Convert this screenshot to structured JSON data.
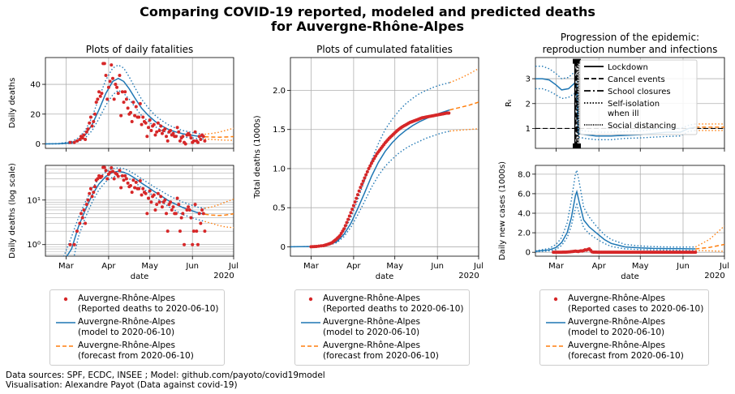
{
  "suptitle": {
    "line1": "Comparing COVID-19 reported, modeled and predicted deaths",
    "line2": "for Auvergne-Rhône-Alpes"
  },
  "colors": {
    "reported": "#d62728",
    "model": "#1f77b4",
    "forecast": "#ff7f0e",
    "grid": "#b0b0b0"
  },
  "sources": {
    "line1": "Data sources: SPF, ECDC, INSEE ; Model: github.com/payoto/covid19model",
    "line2": "Visualisation: Alexandre Payot (Data against covid-19)"
  },
  "legends": {
    "deaths": [
      {
        "kind": "points",
        "text1": "Auvergne-Rhône-Alpes",
        "text2": "(Reported deaths to  2020-06-10)"
      },
      {
        "kind": "solid",
        "text1": "Auvergne-Rhône-Alpes",
        "text2": "(model to  2020-06-10)"
      },
      {
        "kind": "dashed",
        "text1": "Auvergne-Rhône-Alpes",
        "text2": "(forecast from  2020-06-10)"
      }
    ],
    "cases": [
      {
        "kind": "points",
        "text1": "Auvergne-Rhône-Alpes",
        "text2": "(Reported cases to  2020-06-10)"
      },
      {
        "kind": "solid",
        "text1": "Auvergne-Rhône-Alpes",
        "text2": "(model to  2020-06-10)"
      },
      {
        "kind": "dashed",
        "text1": "Auvergne-Rhône-Alpes",
        "text2": "(forecast from  2020-06-10)"
      }
    ]
  },
  "chart_data": [
    {
      "id": "daily",
      "type": "scatter",
      "title": "Plots of daily fatalities",
      "ylabel": "Daily deaths",
      "xlabel": "",
      "xlim": [
        "2020-02-15",
        "2020-07-01"
      ],
      "ylim": [
        -3,
        58
      ],
      "yticks": [
        0,
        20,
        40
      ],
      "xticks": [
        "Mar",
        "Apr",
        "May",
        "Jun",
        "Jul"
      ],
      "grid": true,
      "forecast_start": "2020-06-10",
      "reported_x": [
        "03-04",
        "03-07",
        "03-09",
        "03-11",
        "03-12",
        "03-13",
        "03-14",
        "03-15",
        "03-16",
        "03-17",
        "03-18",
        "03-19",
        "03-20",
        "03-21",
        "03-22",
        "03-23",
        "03-24",
        "03-25",
        "03-26",
        "03-27",
        "03-28",
        "03-29",
        "03-30",
        "03-31",
        "04-01",
        "04-02",
        "04-03",
        "04-04",
        "04-05",
        "04-06",
        "04-07",
        "04-08",
        "04-09",
        "04-10",
        "04-11",
        "04-12",
        "04-13",
        "04-14",
        "04-15",
        "04-16",
        "04-17",
        "04-18",
        "04-19",
        "04-20",
        "04-21",
        "04-22",
        "04-23",
        "04-24",
        "04-25",
        "04-26",
        "04-27",
        "04-28",
        "04-29",
        "04-30",
        "05-01",
        "05-02",
        "05-03",
        "05-04",
        "05-05",
        "05-06",
        "05-07",
        "05-08",
        "05-09",
        "05-10",
        "05-11",
        "05-12",
        "05-13",
        "05-14",
        "05-15",
        "05-16",
        "05-17",
        "05-18",
        "05-19",
        "05-20",
        "05-21",
        "05-22",
        "05-23",
        "05-24",
        "05-25",
        "05-26",
        "05-27",
        "05-28",
        "05-29",
        "05-30",
        "05-31",
        "06-01",
        "06-02",
        "06-03",
        "06-04",
        "06-05",
        "06-06",
        "06-07",
        "06-08",
        "06-09",
        "06-10"
      ],
      "reported_y": [
        1,
        1,
        2,
        3,
        5,
        4,
        6,
        3,
        8,
        10,
        14,
        18,
        12,
        15,
        20,
        28,
        30,
        35,
        32,
        34,
        54,
        54,
        46,
        30,
        38,
        42,
        53,
        44,
        30,
        40,
        38,
        34,
        46,
        19,
        35,
        28,
        35,
        30,
        24,
        20,
        21,
        15,
        28,
        19,
        25,
        18,
        18,
        27,
        13,
        18,
        15,
        14,
        5,
        11,
        16,
        9,
        12,
        13,
        6,
        8,
        14,
        9,
        12,
        7,
        9,
        10,
        5,
        2,
        8,
        9,
        6,
        7,
        5,
        5,
        11,
        8,
        2,
        4,
        5,
        1,
        0,
        6,
        7,
        6,
        4,
        1,
        2,
        8,
        2,
        1,
        5,
        3,
        6,
        5,
        2
      ],
      "model": {
        "x": [
          "02-15",
          "02-25",
          "03-05",
          "03-10",
          "03-15",
          "03-20",
          "03-25",
          "03-30",
          "04-04",
          "04-08",
          "04-12",
          "04-16",
          "04-20",
          "04-25",
          "04-30",
          "05-05",
          "05-10",
          "05-15",
          "05-20",
          "05-25",
          "05-30",
          "06-04",
          "06-10"
        ],
        "y": [
          0,
          0.1,
          0.8,
          2.5,
          6,
          13,
          23,
          34,
          42,
          44,
          42,
          37,
          31,
          24,
          19,
          15,
          12,
          9.5,
          8,
          6.8,
          6,
          5.3,
          4.8
        ],
        "lo": [
          0,
          0,
          0.3,
          1.5,
          4,
          9,
          17,
          26,
          33,
          36,
          34,
          30,
          25,
          19,
          15,
          11.5,
          9,
          7,
          5.7,
          4.7,
          4.2,
          3.7,
          3.3
        ],
        "hi": [
          0,
          0.3,
          1.5,
          4,
          9,
          18,
          31,
          43,
          51,
          53,
          51,
          45,
          38,
          30,
          24,
          19,
          15.5,
          12.5,
          10.5,
          9,
          8,
          7,
          6.5
        ]
      },
      "forecast": {
        "x": [
          "06-10",
          "06-15",
          "06-20",
          "06-25",
          "07-01"
        ],
        "y": [
          4.8,
          4.6,
          4.5,
          4.6,
          4.9
        ],
        "lo": [
          3.3,
          3,
          2.7,
          2.5,
          2.4
        ],
        "hi": [
          6.5,
          7,
          7.8,
          9,
          10.5
        ]
      }
    },
    {
      "id": "daily-log",
      "type": "scatter",
      "title": "",
      "ylabel": "Daily deaths (log scale)",
      "xlabel": "date",
      "yscale": "log",
      "xlim": [
        "2020-02-15",
        "2020-07-01"
      ],
      "ylim": [
        0.55,
        60
      ],
      "yticks": [
        1,
        10
      ],
      "ytick_labels": [
        "10⁰",
        "10¹"
      ],
      "xticks": [
        "Mar",
        "Apr",
        "May",
        "Jun",
        "Jul"
      ],
      "xtick_extra": "2020",
      "grid": true
    },
    {
      "id": "cumulative",
      "type": "line",
      "title": "Plots of cumulated fatalities",
      "ylabel": "Total deaths (1000s)",
      "xlabel": "date",
      "xlim": [
        "2020-02-15",
        "2020-07-01"
      ],
      "ylim": [
        -0.12,
        2.42
      ],
      "yticks": [
        0,
        0.5,
        1.0,
        1.5,
        2.0
      ],
      "ytick_labels": [
        "0",
        "0.5",
        "1.0",
        "1.5",
        "2.0"
      ],
      "xticks": [
        "Mar",
        "Apr",
        "May",
        "Jun",
        "Jul"
      ],
      "xtick_extra": "2020",
      "grid": true,
      "model": {
        "x": [
          "02-15",
          "03-01",
          "03-08",
          "03-15",
          "03-20",
          "03-25",
          "03-30",
          "04-04",
          "04-09",
          "04-14",
          "04-19",
          "04-24",
          "04-29",
          "05-04",
          "05-09",
          "05-14",
          "05-19",
          "05-24",
          "05-29",
          "06-03",
          "06-10"
        ],
        "y": [
          0,
          0.003,
          0.01,
          0.03,
          0.07,
          0.16,
          0.3,
          0.49,
          0.69,
          0.9,
          1.08,
          1.22,
          1.33,
          1.42,
          1.49,
          1.55,
          1.6,
          1.64,
          1.68,
          1.71,
          1.75
        ],
        "lo": [
          0,
          0.002,
          0.008,
          0.025,
          0.055,
          0.13,
          0.25,
          0.41,
          0.58,
          0.76,
          0.91,
          1.03,
          1.12,
          1.2,
          1.26,
          1.31,
          1.35,
          1.39,
          1.42,
          1.45,
          1.48
        ],
        "hi": [
          0,
          0.004,
          0.015,
          0.04,
          0.09,
          0.2,
          0.37,
          0.6,
          0.85,
          1.1,
          1.32,
          1.5,
          1.63,
          1.74,
          1.83,
          1.9,
          1.96,
          2.0,
          2.04,
          2.07,
          2.1
        ]
      },
      "forecast": {
        "x": [
          "06-10",
          "06-17",
          "06-24",
          "07-01"
        ],
        "y": [
          1.75,
          1.78,
          1.81,
          1.85
        ],
        "lo": [
          1.48,
          1.49,
          1.5,
          1.51
        ],
        "hi": [
          2.1,
          2.15,
          2.21,
          2.28
        ]
      },
      "reported": {
        "x": [
          "03-01",
          "03-05",
          "03-10",
          "03-13",
          "03-16",
          "03-19",
          "03-22",
          "03-25",
          "03-28",
          "03-31",
          "04-03",
          "04-06",
          "04-09",
          "04-12",
          "04-15",
          "04-18",
          "04-21",
          "04-24",
          "04-27",
          "04-30",
          "05-03",
          "05-06",
          "05-09",
          "05-12",
          "05-15",
          "05-18",
          "05-21",
          "05-24",
          "05-27",
          "05-30",
          "06-02",
          "06-05",
          "06-08",
          "06-10"
        ],
        "y": [
          0.001,
          0.005,
          0.015,
          0.03,
          0.05,
          0.09,
          0.14,
          0.23,
          0.35,
          0.48,
          0.62,
          0.76,
          0.88,
          1.0,
          1.1,
          1.19,
          1.26,
          1.33,
          1.39,
          1.44,
          1.49,
          1.53,
          1.56,
          1.59,
          1.61,
          1.63,
          1.65,
          1.66,
          1.67,
          1.68,
          1.69,
          1.7,
          1.71,
          1.71
        ]
      }
    },
    {
      "id": "rt",
      "type": "line",
      "title": "Progression of the epidemic:",
      "title2": "reproduction number and infections",
      "ylabel": "Rₜ",
      "xlabel": "",
      "xlim": [
        "2020-02-15",
        "2020-07-01"
      ],
      "ylim": [
        0.2,
        3.85
      ],
      "yticks": [
        1,
        2,
        3
      ],
      "xticks": [
        "Mar",
        "Apr",
        "May",
        "Jun",
        "Jul"
      ],
      "grid": true,
      "interventions_date": "2020-03-16",
      "interventions": [
        {
          "label": "Lockdown",
          "style": "solid"
        },
        {
          "label": "Cancel events",
          "style": "dashed"
        },
        {
          "label": "School closures",
          "style": "dashdot"
        },
        {
          "label": "Self-isolation\nwhen ill",
          "style": "dotted"
        },
        {
          "label": "Social distancing",
          "style": "densely-dotted"
        }
      ],
      "model": {
        "x": [
          "02-15",
          "02-20",
          "02-25",
          "03-01",
          "03-05",
          "03-10",
          "03-14",
          "03-16",
          "03-17",
          "03-22",
          "03-30",
          "04-10",
          "04-20",
          "05-01",
          "05-10",
          "05-20",
          "05-30",
          "06-05",
          "06-10"
        ],
        "y": [
          3.0,
          3.0,
          2.95,
          2.75,
          2.55,
          2.6,
          2.8,
          2.7,
          0.8,
          0.75,
          0.7,
          0.7,
          0.72,
          0.75,
          0.8,
          0.85,
          0.85,
          1.0,
          1.05
        ],
        "lo": [
          2.6,
          2.6,
          2.5,
          2.35,
          2.2,
          2.25,
          2.4,
          2.3,
          0.65,
          0.6,
          0.55,
          0.55,
          0.6,
          0.62,
          0.65,
          0.68,
          0.7,
          0.88,
          0.92
        ],
        "hi": [
          3.5,
          3.5,
          3.4,
          3.2,
          3.0,
          3.05,
          3.25,
          3.2,
          0.95,
          0.9,
          0.85,
          0.85,
          0.87,
          0.9,
          0.96,
          1.0,
          1.0,
          1.13,
          1.18
        ]
      },
      "forecast": {
        "x": [
          "06-10",
          "07-01"
        ],
        "y": [
          1.05,
          1.05
        ],
        "lo": [
          0.92,
          0.92
        ],
        "hi": [
          1.18,
          1.18
        ]
      },
      "reference_line": 1
    },
    {
      "id": "cases",
      "type": "line",
      "title": "",
      "ylabel": "Daily new cases (1000s)",
      "xlabel": "date",
      "xlim": [
        "2020-02-15",
        "2020-07-01"
      ],
      "ylim": [
        -0.4,
        8.9
      ],
      "yticks": [
        0,
        2.0,
        4.0,
        6.0,
        8.0
      ],
      "ytick_labels": [
        "0",
        "2.0",
        "4.0",
        "6.0",
        "8.0"
      ],
      "xticks": [
        "Mar",
        "Apr",
        "May",
        "Jun",
        "Jul"
      ],
      "xtick_extra": "2020",
      "grid": true,
      "model": {
        "x": [
          "02-15",
          "02-25",
          "03-01",
          "03-05",
          "03-09",
          "03-12",
          "03-15",
          "03-16",
          "03-18",
          "03-21",
          "03-25",
          "03-30",
          "04-05",
          "04-10",
          "04-20",
          "05-01",
          "05-10",
          "05-20",
          "05-30",
          "06-10"
        ],
        "y": [
          0.1,
          0.25,
          0.5,
          1.0,
          2.0,
          3.5,
          5.8,
          6.2,
          5.0,
          3.3,
          2.6,
          2.0,
          1.3,
          0.9,
          0.55,
          0.45,
          0.4,
          0.38,
          0.36,
          0.35
        ],
        "lo": [
          0.05,
          0.15,
          0.3,
          0.7,
          1.5,
          2.7,
          4.5,
          4.9,
          3.8,
          2.5,
          1.9,
          1.4,
          0.9,
          0.6,
          0.35,
          0.28,
          0.25,
          0.22,
          0.2,
          0.18
        ],
        "hi": [
          0.15,
          0.4,
          0.8,
          1.5,
          3.0,
          5.3,
          8.0,
          8.4,
          7.0,
          4.6,
          3.6,
          2.7,
          1.8,
          1.3,
          0.8,
          0.65,
          0.58,
          0.55,
          0.53,
          0.55
        ]
      },
      "forecast": {
        "x": [
          "06-10",
          "06-20",
          "07-01"
        ],
        "y": [
          0.35,
          0.5,
          0.8
        ],
        "lo": [
          0.18,
          0.15,
          0.1
        ],
        "hi": [
          0.55,
          1.3,
          2.7
        ]
      },
      "reported": {
        "x_start": "02-28",
        "x_end": "06-10",
        "y": [
          0,
          0,
          0,
          0,
          0,
          0,
          0,
          0.01,
          0.01,
          0.02,
          0.03,
          0.04,
          0.05,
          0.07,
          0.08,
          0.1,
          0.12,
          0.1,
          0.08,
          0.12,
          0.15,
          0.13,
          0.18,
          0.25,
          0.22,
          0.3,
          0.35,
          0.2,
          0.05,
          0.02,
          0.01,
          0.01,
          0,
          0,
          0,
          0,
          0,
          0,
          0,
          0,
          0,
          0,
          0,
          0,
          0,
          0,
          0,
          0,
          0,
          0,
          0,
          0,
          0,
          0,
          0,
          0,
          0,
          0,
          0,
          0,
          0,
          0,
          0,
          0,
          0,
          0,
          0,
          0,
          0,
          0,
          0,
          0,
          0,
          0,
          0,
          0,
          0,
          0,
          0,
          0,
          0,
          0,
          0,
          0,
          0,
          0,
          0,
          0,
          0,
          0,
          0,
          0,
          0,
          0,
          0,
          0,
          0,
          0,
          0,
          0,
          0,
          0,
          0,
          0
        ]
      }
    }
  ]
}
